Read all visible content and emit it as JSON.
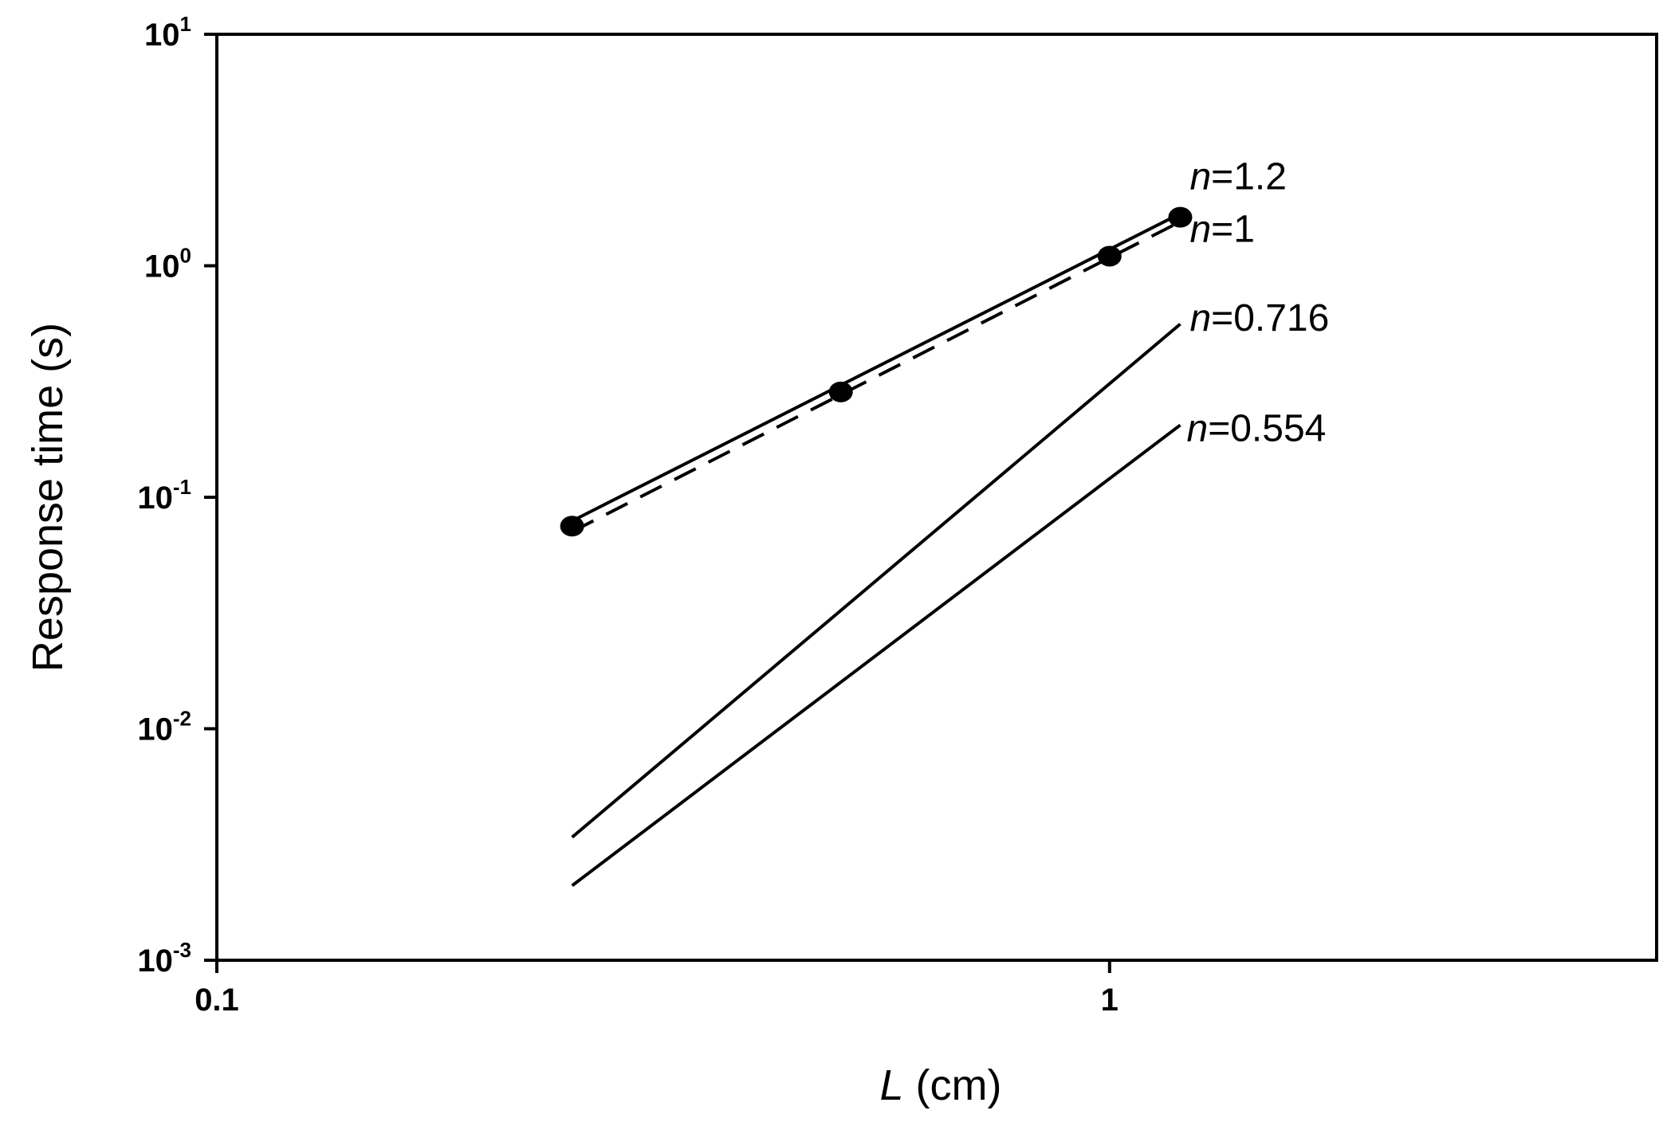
{
  "chart_data": {
    "type": "line",
    "xlabel": {
      "var": "L",
      "unit": " (cm)"
    },
    "ylabel": "Response time (s)",
    "xscale": "log",
    "yscale": "log",
    "xlim": [
      0.1,
      4.1
    ],
    "ylim": [
      0.001,
      10
    ],
    "x_ticks": [
      {
        "value": 0.1,
        "label": "0.1"
      },
      {
        "value": 1,
        "label": "1"
      }
    ],
    "y_ticks": [
      {
        "value": 0.001,
        "base": "10",
        "exp": "-3"
      },
      {
        "value": 0.01,
        "base": "10",
        "exp": "-2"
      },
      {
        "value": 0.1,
        "base": "10",
        "exp": "-1"
      },
      {
        "value": 1,
        "base": "10",
        "exp": "0"
      },
      {
        "value": 10,
        "base": "10",
        "exp": "1"
      }
    ],
    "series": [
      {
        "style": "solid",
        "markers": false,
        "x": [
          0.25,
          1.2
        ],
        "y": [
          0.079,
          1.68
        ]
      },
      {
        "style": "dashed",
        "markers": false,
        "x": [
          0.25,
          1.2
        ],
        "y": [
          0.071,
          1.55
        ]
      },
      {
        "style": "solid",
        "markers": false,
        "x": [
          0.25,
          1.2
        ],
        "y": [
          0.0034,
          0.56
        ]
      },
      {
        "style": "solid",
        "markers": false,
        "x": [
          0.25,
          1.2
        ],
        "y": [
          0.0021,
          0.205
        ]
      },
      {
        "style": "markers",
        "markers": true,
        "x": [
          0.25,
          0.5,
          1.0,
          1.2
        ],
        "y": [
          0.075,
          0.285,
          1.1,
          1.62
        ]
      }
    ],
    "annotations": [
      {
        "var": "n",
        "text": "=1.2",
        "x": 1.23,
        "y": 2.45
      },
      {
        "var": "n",
        "text": "=1",
        "x": 1.23,
        "y": 1.45
      },
      {
        "var": "n",
        "text": "=0.716",
        "x": 1.23,
        "y": 0.6
      },
      {
        "var": "n",
        "text": "=0.554",
        "x": 1.22,
        "y": 0.2
      }
    ]
  }
}
